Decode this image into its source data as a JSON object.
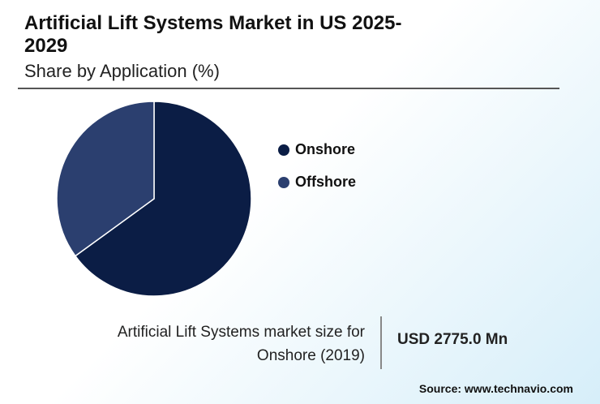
{
  "chart_data": {
    "type": "pie",
    "title": "Artificial Lift Systems Market in US 2025-2029",
    "subtitle": "Share by Application (%)",
    "categories": [
      "Onshore",
      "Offshore"
    ],
    "values": [
      65,
      35
    ],
    "colors": [
      "#0b1d45",
      "#2b3f6f"
    ]
  },
  "callout": {
    "label": "Artificial Lift Systems market size for Onshore (2019)",
    "value": "USD 2775.0 Mn"
  },
  "source": "Source: www.technavio.com"
}
